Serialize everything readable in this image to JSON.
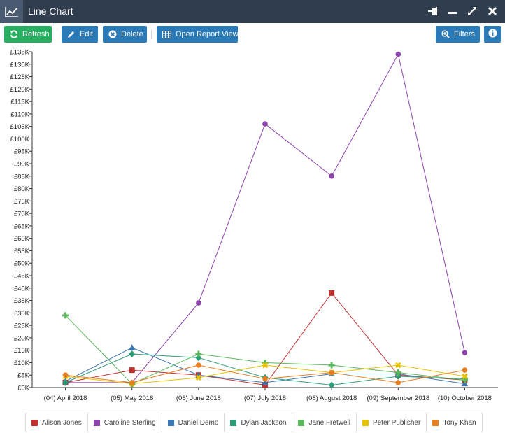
{
  "window": {
    "title": "Line Chart",
    "icons": [
      "line-chart-icon",
      "pin-icon",
      "minimize-icon",
      "maximize-icon",
      "close-icon"
    ]
  },
  "toolbar": {
    "refresh_label": "Refresh",
    "edit_label": "Edit",
    "delete_label": "Delete",
    "open_report_label": "Open Report View",
    "filters_label": "Filters",
    "colors": {
      "refresh": "#27ae60",
      "primary": "#2a7ab8"
    }
  },
  "chart_data": {
    "type": "line",
    "title": "",
    "xlabel": "",
    "ylabel": "",
    "categories": [
      "(04) April 2018",
      "(05) May 2018",
      "(06) June 2018",
      "(07) July 2018",
      "(08) August 2018",
      "(09) September 2018",
      "(10) October 2018"
    ],
    "ylim": [
      0,
      135000
    ],
    "yticks": [
      "£0K",
      "£5K",
      "£10K",
      "£15K",
      "£20K",
      "£25K",
      "£30K",
      "£35K",
      "£40K",
      "£45K",
      "£50K",
      "£55K",
      "£60K",
      "£65K",
      "£70K",
      "£75K",
      "£80K",
      "£85K",
      "£90K",
      "£95K",
      "£100K",
      "£105K",
      "£110K",
      "£115K",
      "£120K",
      "£125K",
      "£130K",
      "£135K"
    ],
    "grid": false,
    "legend_position": "bottom",
    "series": [
      {
        "name": "Alison Jones",
        "color": "#c0302f",
        "marker": "square",
        "values": [
          2000,
          7000,
          5000,
          1000,
          38000,
          5000,
          3000
        ]
      },
      {
        "name": "Caroline Sterling",
        "color": "#8e44ad",
        "marker": "circle",
        "values": [
          2000,
          2000,
          34000,
          106000,
          85000,
          134000,
          14000
        ]
      },
      {
        "name": "Daniel Demo",
        "color": "#3a78b5",
        "marker": "triangle",
        "values": [
          2500,
          16000,
          5000,
          2000,
          5500,
          5500,
          1500
        ]
      },
      {
        "name": "Dylan Jackson",
        "color": "#2e9c76",
        "marker": "diamond",
        "values": [
          2000,
          13500,
          12000,
          4000,
          1000,
          4500,
          3500
        ]
      },
      {
        "name": "Jane Fretwell",
        "color": "#5cb85c",
        "marker": "cross",
        "values": [
          29000,
          1500,
          13500,
          10000,
          9000,
          6000,
          3000
        ]
      },
      {
        "name": "Peter Publisher",
        "color": "#e6c200",
        "marker": "x",
        "values": [
          4500,
          1500,
          4000,
          9000,
          6000,
          9000,
          4500
        ]
      },
      {
        "name": "Tony Khan",
        "color": "#e67e22",
        "marker": "circle",
        "values": [
          5000,
          2000,
          9000,
          3500,
          6000,
          2000,
          7000
        ]
      }
    ]
  }
}
